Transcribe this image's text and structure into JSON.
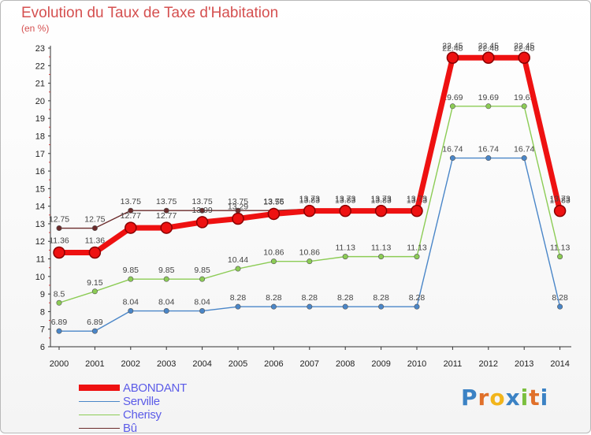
{
  "title": "Evolution du Taux de Taxe d'Habitation",
  "subtitle": "(en %)",
  "logo": {
    "text": "Proxiti",
    "letter_colors": [
      "#3b82c4",
      "#e0702a",
      "#f2b51b",
      "#3b82c4",
      "#7bbf3e",
      "#e0702a",
      "#3b82c4"
    ]
  },
  "chart_data": {
    "type": "line",
    "x": [
      "2000",
      "2001",
      "2002",
      "2003",
      "2004",
      "2005",
      "2006",
      "2007",
      "2008",
      "2009",
      "2010",
      "2011",
      "2012",
      "2013",
      "2014"
    ],
    "ylim": [
      6,
      23
    ],
    "yticks": [
      "6",
      "7",
      "8",
      "9",
      "10",
      "11",
      "12",
      "13",
      "14",
      "15",
      "16",
      "17",
      "18",
      "19",
      "20",
      "21",
      "22",
      "23"
    ],
    "grid": false,
    "legend_position": "bottom-left",
    "series": [
      {
        "name": "Bû",
        "color": "#6b2b2b",
        "values": [
          12.75,
          12.75,
          13.75,
          13.75,
          13.75,
          13.75,
          13.75,
          13.83,
          13.83,
          13.83,
          13.83,
          22.48,
          22.48,
          22.48,
          13.83
        ],
        "labels": [
          "12.75",
          "12.75",
          "13.75",
          "13.75",
          "13.75",
          "13.75",
          "13.75",
          "13.83",
          "13.83",
          "13.83",
          "13.83",
          "22.48",
          "22.48",
          "22.48",
          "13.83"
        ]
      },
      {
        "name": "Serville",
        "color": "#4a86c8",
        "values": [
          6.89,
          6.89,
          8.04,
          8.04,
          8.04,
          8.28,
          8.28,
          8.28,
          8.28,
          8.28,
          8.28,
          16.74,
          16.74,
          16.74,
          8.28
        ],
        "labels": [
          "6.89",
          "6.89",
          "8.04",
          "8.04",
          "8.04",
          "8.28",
          "8.28",
          "8.28",
          "8.28",
          "8.28",
          "8.28",
          "16.74",
          "16.74",
          "16.74",
          "8.28"
        ]
      },
      {
        "name": "Cherisy",
        "color": "#8ccc55",
        "values": [
          8.5,
          9.15,
          9.85,
          9.85,
          9.85,
          10.44,
          10.86,
          10.86,
          11.13,
          11.13,
          11.13,
          19.69,
          19.69,
          19.69,
          11.13
        ],
        "labels": [
          "8.5",
          "9.15",
          "9.85",
          "9.85",
          "9.85",
          "10.44",
          "10.86",
          "10.86",
          "11.13",
          "11.13",
          "11.13",
          "19.69",
          "19.69",
          "19.69",
          "11.13"
        ]
      },
      {
        "name": "ABONDANT",
        "color": "#ee1111",
        "values": [
          11.36,
          11.36,
          12.77,
          12.77,
          13.09,
          13.29,
          13.56,
          13.73,
          13.73,
          13.73,
          13.73,
          22.45,
          22.45,
          22.45,
          13.73
        ],
        "labels": [
          "11.36",
          "11.36",
          "12.77",
          "12.77",
          "13.09",
          "13.29",
          "13.56",
          "13.73",
          "13.73",
          "13.73",
          "13.73",
          "22.45",
          "22.45",
          "22.45",
          "13.73"
        ]
      }
    ],
    "legend": [
      {
        "name": "ABONDANT",
        "color": "#ee1111"
      },
      {
        "name": "Serville",
        "color": "#4a86c8"
      },
      {
        "name": "Cherisy",
        "color": "#8ccc55"
      },
      {
        "name": "Bû",
        "color": "#6b2b2b"
      }
    ]
  }
}
